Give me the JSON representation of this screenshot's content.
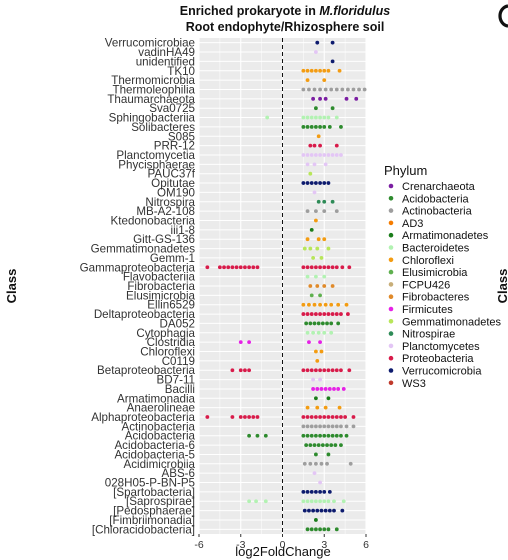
{
  "chart_data": {
    "type": "scatter",
    "title_prefix": "Enriched prokaryote in ",
    "title_species": "M.floridulus",
    "subtitle": "Root endophyte/Rhizosphere soil",
    "xlabel": "log2FoldChange",
    "ylabel": "Class",
    "right_edge_label": "Class",
    "xlim": [
      -6,
      6
    ],
    "xticks": [
      -6,
      -3,
      0,
      3,
      6
    ],
    "legend_title": "Phylum",
    "legend_position": "right",
    "phyla": [
      {
        "name": "Crenarchaeota",
        "color": "#7B1FA2"
      },
      {
        "name": "Acidobacteria",
        "color": "#2E8B2E"
      },
      {
        "name": "Actinobacteria",
        "color": "#9E9E9E"
      },
      {
        "name": "AD3",
        "color": "#F57C00"
      },
      {
        "name": "Armatimonadetes",
        "color": "#1B7D1B"
      },
      {
        "name": "Bacteroidetes",
        "color": "#B2F2B2"
      },
      {
        "name": "Chloroflexi",
        "color": "#F39C12"
      },
      {
        "name": "Elusimicrobia",
        "color": "#5FB04F"
      },
      {
        "name": "FCPU426",
        "color": "#C8AE78"
      },
      {
        "name": "Fibrobacteres",
        "color": "#E08A2A"
      },
      {
        "name": "Firmicutes",
        "color": "#E621E6"
      },
      {
        "name": "Gemmatimonadetes",
        "color": "#B8E65A"
      },
      {
        "name": "Nitrospirae",
        "color": "#2E8B57"
      },
      {
        "name": "Planctomycetes",
        "color": "#E3C6F5"
      },
      {
        "name": "Proteobacteria",
        "color": "#D81B4A"
      },
      {
        "name": "Verrucomicrobia",
        "color": "#0D1B6E"
      },
      {
        "name": "WS3",
        "color": "#C0392B"
      }
    ],
    "classes": [
      {
        "name": "Verrucomicrobiae",
        "phylum": "Verrucomicrobia",
        "x": [
          2.5,
          3.6
        ]
      },
      {
        "name": "vadinHA49",
        "phylum": "Planctomycetes",
        "x": [
          2.4
        ]
      },
      {
        "name": "unidentified",
        "phylum": "Verrucomicrobia",
        "x": [
          3.6
        ]
      },
      {
        "name": "TK10",
        "phylum": "Chloroflexi",
        "x": [
          1.5,
          1.8,
          2.1,
          2.4,
          2.7,
          3.0,
          3.3,
          4.1
        ]
      },
      {
        "name": "Thermomicrobia",
        "phylum": "Chloroflexi",
        "x": [
          1.8,
          3.0
        ]
      },
      {
        "name": "Thermoleophilia",
        "phylum": "Actinobacteria",
        "x": [
          1.5,
          1.9,
          2.3,
          2.7,
          3.1,
          3.5,
          3.9,
          4.3,
          4.7,
          5.1,
          5.5,
          5.9
        ]
      },
      {
        "name": "Thaumarchaeota",
        "phylum": "Crenarchaeota",
        "x": [
          2.2,
          2.7,
          3.1,
          4.6,
          5.3
        ]
      },
      {
        "name": "Sva0725",
        "phylum": "Acidobacteria",
        "x": [
          2.4,
          3.6
        ]
      },
      {
        "name": "Sphingobacteriia",
        "phylum": "Bacteroidetes",
        "x": [
          -1.1,
          1.5,
          1.8,
          2.1,
          2.4,
          2.7,
          3.0,
          3.3,
          3.9
        ]
      },
      {
        "name": "Solibacteres",
        "phylum": "Acidobacteria",
        "x": [
          1.5,
          1.8,
          2.1,
          2.4,
          2.7,
          3.0,
          3.4,
          4.2
        ]
      },
      {
        "name": "S085",
        "phylum": "Chloroflexi",
        "x": [
          2.6
        ]
      },
      {
        "name": "PRR-12",
        "phylum": "Proteobacteria",
        "x": [
          2.0,
          2.3,
          2.7,
          3.9
        ]
      },
      {
        "name": "Planctomycetia",
        "phylum": "Planctomycetes",
        "x": [
          1.5,
          1.8,
          2.1,
          2.4,
          2.7,
          3.0,
          3.3,
          3.6,
          3.9,
          4.2
        ]
      },
      {
        "name": "Phycisphaerae",
        "phylum": "Planctomycetes",
        "x": [
          1.8,
          2.3,
          3.1
        ]
      },
      {
        "name": "PAUC37f",
        "phylum": "Gemmatimonadetes",
        "x": [
          2.0
        ]
      },
      {
        "name": "Opitutae",
        "phylum": "Verrucomicrobia",
        "x": [
          1.5,
          1.8,
          2.1,
          2.4,
          2.7,
          3.0,
          3.3
        ]
      },
      {
        "name": "OM190",
        "phylum": "Planctomycetes",
        "x": [
          2.3
        ]
      },
      {
        "name": "Nitrospira",
        "phylum": "Nitrospirae",
        "x": [
          2.6,
          3.0,
          3.6
        ]
      },
      {
        "name": "MB-A2-108",
        "phylum": "Actinobacteria",
        "x": [
          1.8,
          2.4,
          3.0,
          3.9
        ]
      },
      {
        "name": "Ktedonobacteria",
        "phylum": "Chloroflexi",
        "x": [
          2.4
        ]
      },
      {
        "name": "iii1-8",
        "phylum": "Armatimonadetes",
        "x": [
          2.1
        ]
      },
      {
        "name": "Gitt-GS-136",
        "phylum": "Chloroflexi",
        "x": [
          1.8,
          2.6,
          3.0
        ]
      },
      {
        "name": "Gemmatimonadetes",
        "phylum": "Gemmatimonadetes",
        "x": [
          1.6,
          2.0,
          2.5,
          3.3
        ]
      },
      {
        "name": "Gemm-1",
        "phylum": "Gemmatimonadetes",
        "x": [
          2.2,
          2.8
        ]
      },
      {
        "name": "Gammaproteobacteria",
        "phylum": "Proteobacteria",
        "x": [
          -5.4,
          -4.5,
          -4.2,
          -3.9,
          -3.6,
          -3.3,
          -3.0,
          -2.7,
          -2.4,
          -2.1,
          -1.8,
          1.5,
          1.8,
          2.1,
          2.4,
          2.7,
          3.0,
          3.3,
          3.6,
          3.9,
          4.3,
          4.8
        ]
      },
      {
        "name": "Flavobacteriia",
        "phylum": "Bacteroidetes",
        "x": [
          1.8,
          2.4,
          3.0
        ]
      },
      {
        "name": "Fibrobacteria",
        "phylum": "Fibrobacteres",
        "x": [
          2.0,
          2.5,
          3.0,
          3.6
        ]
      },
      {
        "name": "Elusimicrobia",
        "phylum": "Elusimicrobia",
        "x": [
          2.1,
          2.7
        ]
      },
      {
        "name": "Ellin6529",
        "phylum": "Chloroflexi",
        "x": [
          1.5,
          1.9,
          2.3,
          2.7,
          3.1,
          3.5,
          4.0,
          4.6
        ]
      },
      {
        "name": "Deltaproteobacteria",
        "phylum": "Proteobacteria",
        "x": [
          1.5,
          1.8,
          2.1,
          2.4,
          2.7,
          3.0,
          3.3,
          3.6,
          3.9,
          4.2,
          4.7
        ]
      },
      {
        "name": "DA052",
        "phylum": "Acidobacteria",
        "x": [
          1.7,
          2.0,
          2.3,
          2.6,
          2.9,
          3.2,
          3.5,
          4.0
        ]
      },
      {
        "name": "Cytophagia",
        "phylum": "Bacteroidetes",
        "x": [
          1.8,
          2.2,
          2.6,
          3.0,
          3.5
        ]
      },
      {
        "name": "Clostridia",
        "phylum": "Firmicutes",
        "x": [
          -3.0,
          -2.4,
          1.9,
          2.7
        ]
      },
      {
        "name": "Chloroflexi",
        "phylum": "Chloroflexi",
        "x": [
          2.4,
          2.8
        ]
      },
      {
        "name": "C0119",
        "phylum": "Chloroflexi",
        "x": [
          2.5
        ]
      },
      {
        "name": "Betaproteobacteria",
        "phylum": "Proteobacteria",
        "x": [
          -3.6,
          -3.0,
          -2.7,
          -2.4,
          1.5,
          1.8,
          2.1,
          2.4,
          2.7,
          3.0,
          3.3,
          3.6,
          3.9,
          4.2,
          4.8
        ]
      },
      {
        "name": "BD7-11",
        "phylum": "Planctomycetes",
        "x": [
          2.2,
          2.7
        ]
      },
      {
        "name": "Bacilli",
        "phylum": "Firmicutes",
        "x": [
          2.2,
          2.5,
          2.8,
          3.1,
          3.4,
          3.7,
          4.0,
          4.4
        ]
      },
      {
        "name": "Armatimonadia",
        "phylum": "Armatimonadetes",
        "x": [
          2.4,
          3.3
        ]
      },
      {
        "name": "Anaerolineae",
        "phylum": "Chloroflexi",
        "x": [
          1.8,
          2.5,
          3.1,
          4.1
        ]
      },
      {
        "name": "Alphaproteobacteria",
        "phylum": "Proteobacteria",
        "x": [
          -5.4,
          -3.6,
          -3.0,
          -2.7,
          -2.4,
          -2.1,
          -1.8,
          1.5,
          1.8,
          2.1,
          2.4,
          2.7,
          3.0,
          3.3,
          3.6,
          3.9,
          4.2,
          4.5,
          5.1
        ]
      },
      {
        "name": "Actinobacteria",
        "phylum": "Actinobacteria",
        "x": [
          1.5,
          1.8,
          2.1,
          2.4,
          2.7,
          3.0,
          3.3,
          3.6,
          3.9,
          4.2,
          4.6,
          5.1
        ]
      },
      {
        "name": "Acidobacteria",
        "phylum": "Acidobacteria",
        "x": [
          -2.4,
          -1.8,
          -1.2,
          1.5,
          1.8,
          2.1,
          2.4,
          2.7,
          3.0,
          3.3,
          3.6,
          3.9,
          4.2,
          4.6
        ]
      },
      {
        "name": "Acidobacteria-6",
        "phylum": "Acidobacteria",
        "x": [
          1.7,
          2.0,
          2.3,
          2.6,
          2.9,
          3.2,
          3.5,
          3.8,
          4.2
        ]
      },
      {
        "name": "Acidobacteria-5",
        "phylum": "Acidobacteria",
        "x": [
          2.4,
          3.3
        ]
      },
      {
        "name": "Acidimicrobiia",
        "phylum": "Actinobacteria",
        "x": [
          1.6,
          2.0,
          2.4,
          2.8,
          3.2,
          4.9
        ]
      },
      {
        "name": "ABS-6",
        "phylum": "Planctomycetes",
        "x": [
          2.3
        ]
      },
      {
        "name": "028H05-P-BN-P5",
        "phylum": "Planctomycetes",
        "x": [
          2.7
        ]
      },
      {
        "name": "[Spartobacteria]",
        "phylum": "Verrucomicrobia",
        "x": [
          1.5,
          1.8,
          2.1,
          2.4,
          2.7,
          3.0,
          3.4
        ]
      },
      {
        "name": "[Saprospirae]",
        "phylum": "Bacteroidetes",
        "x": [
          -2.4,
          -1.9,
          -1.2,
          1.5,
          1.8,
          2.1,
          2.4,
          2.7,
          3.0,
          3.3,
          3.7,
          4.4
        ]
      },
      {
        "name": "[Pedosphaerae]",
        "phylum": "Verrucomicrobia",
        "x": [
          1.6,
          1.9,
          2.2,
          2.5,
          2.8,
          3.1,
          3.4,
          3.7,
          4.3
        ]
      },
      {
        "name": "[Fimbriimonadia]",
        "phylum": "Armatimonadetes",
        "x": [
          2.4
        ]
      },
      {
        "name": "[Chloracidobacteria]",
        "phylum": "Acidobacteria",
        "x": [
          1.8,
          2.1,
          2.4,
          2.7,
          3.0,
          3.3,
          3.9
        ]
      }
    ]
  }
}
